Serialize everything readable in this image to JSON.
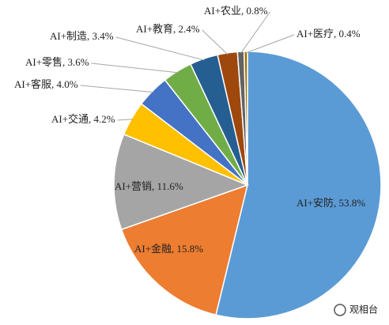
{
  "chart_data": {
    "type": "pie",
    "values": [
      53.8,
      15.8,
      11.6,
      4.2,
      4.0,
      3.6,
      3.4,
      2.4,
      0.8,
      0.4
    ],
    "value_labels": [
      "AI+安防, 53.8%",
      "AI+金融, 15.8%",
      "AI+营销, 11.6%",
      "AI+交通, 4.2%",
      "AI+客服, 4.0%",
      "AI+零售, 3.6%",
      "AI+制造, 3.4%",
      "AI+教育, 2.4%",
      "AI+农业, 0.8%",
      "AI+医疗, 0.4%"
    ],
    "colors": [
      "#5b9bd5",
      "#ed7d31",
      "#a5a5a5",
      "#ffc000",
      "#4472c4",
      "#70ad47",
      "#255e91",
      "#9e480e",
      "#636363",
      "#997300"
    ],
    "watermark": "观相台"
  }
}
